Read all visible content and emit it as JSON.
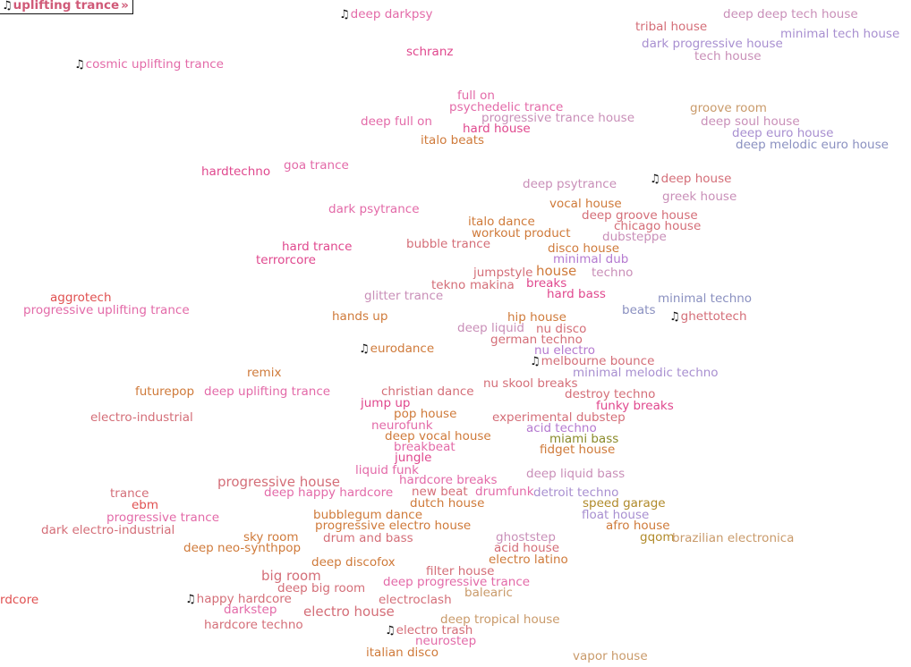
{
  "colors": {
    "pink": "#e36aa8",
    "magenta": "#e0488e",
    "salmon": "#e06a6a",
    "rose": "#d46e78",
    "orange": "#cf7a3a",
    "tan": "#c99a6a",
    "gold": "#b08a2a",
    "olive": "#8a8a2a",
    "mauve": "#c98fb8",
    "lavender": "#a88fd0",
    "slate": "#8a90c0",
    "violet": "#b57ad0",
    "red": "#e05050"
  },
  "genres": [
    {
      "label": "deep darkpsy",
      "note": true
    },
    {
      "label": "cosmic uplifting trance",
      "note": true
    },
    {
      "label": "schranz"
    },
    {
      "label": "tribal house"
    },
    {
      "label": "deep deep tech house"
    },
    {
      "label": "dark progressive house"
    },
    {
      "label": "minimal tech house"
    },
    {
      "label": "tech house"
    },
    {
      "label": "full on"
    },
    {
      "label": "psychedelic trance"
    },
    {
      "label": "progressive trance house"
    },
    {
      "label": "deep full on"
    },
    {
      "label": "hard house"
    },
    {
      "label": "italo beats"
    },
    {
      "label": "groove room"
    },
    {
      "label": "deep soul house"
    },
    {
      "label": "deep euro house"
    },
    {
      "label": "deep melodic euro house"
    },
    {
      "label": "hardtechno"
    },
    {
      "label": "goa trance"
    },
    {
      "label": "deep psytrance"
    },
    {
      "label": "deep house",
      "note": true
    },
    {
      "label": "greek house"
    },
    {
      "label": "dark psytrance"
    },
    {
      "label": "vocal house"
    },
    {
      "label": "deep groove house"
    },
    {
      "label": "italo dance"
    },
    {
      "label": "chicago house"
    },
    {
      "label": "workout product"
    },
    {
      "label": "dubsteppe"
    },
    {
      "label": "hard trance"
    },
    {
      "label": "bubble trance"
    },
    {
      "label": "disco house"
    },
    {
      "label": "terrorcore"
    },
    {
      "label": "minimal dub"
    },
    {
      "label": "jumpstyle"
    },
    {
      "label": "house"
    },
    {
      "label": "techno"
    },
    {
      "label": "aggrotech"
    },
    {
      "label": "tekno"
    },
    {
      "label": "makina"
    },
    {
      "label": "breaks"
    },
    {
      "label": "glitter trance"
    },
    {
      "label": "hard bass"
    },
    {
      "label": "minimal techno"
    },
    {
      "label": "progressive uplifting trance"
    },
    {
      "label": "beats"
    },
    {
      "label": "ghettotech",
      "note": true
    },
    {
      "label": "hands up"
    },
    {
      "label": "hip house"
    },
    {
      "label": "deep liquid"
    },
    {
      "label": "nu disco"
    },
    {
      "label": "german techno"
    },
    {
      "label": "eurodance",
      "note": true
    },
    {
      "label": "nu electro"
    },
    {
      "label": "melbourne bounce",
      "note": true
    },
    {
      "label": "remix"
    },
    {
      "label": "minimal melodic techno"
    },
    {
      "label": "nu skool breaks"
    },
    {
      "label": "futurepop"
    },
    {
      "label": "deep uplifting trance"
    },
    {
      "label": "christian dance"
    },
    {
      "label": "destroy techno"
    },
    {
      "label": "jump up"
    },
    {
      "label": "funky breaks"
    },
    {
      "label": "pop house"
    },
    {
      "label": "electro-industrial"
    },
    {
      "label": "experimental dubstep"
    },
    {
      "label": "neurofunk"
    },
    {
      "label": "acid techno"
    },
    {
      "label": "uplifting trance",
      "note": true,
      "selected": true
    },
    {
      "label": "deep vocal house"
    },
    {
      "label": "miami bass"
    },
    {
      "label": "breakbeat"
    },
    {
      "label": "fidget house"
    },
    {
      "label": "jungle"
    },
    {
      "label": "liquid funk"
    },
    {
      "label": "deep liquid bass"
    },
    {
      "label": "progressive house"
    },
    {
      "label": "hardcore breaks"
    },
    {
      "label": "trance"
    },
    {
      "label": "deep happy hardcore"
    },
    {
      "label": "new beat"
    },
    {
      "label": "drumfunk"
    },
    {
      "label": "detroit techno"
    },
    {
      "label": "ebm"
    },
    {
      "label": "dutch house"
    },
    {
      "label": "speed garage"
    },
    {
      "label": "progressive trance"
    },
    {
      "label": "bubblegum dance"
    },
    {
      "label": "float house"
    },
    {
      "label": "dark electro-industrial"
    },
    {
      "label": "progressive electro house"
    },
    {
      "label": "afro house"
    },
    {
      "label": "sky room"
    },
    {
      "label": "drum and bass"
    },
    {
      "label": "ghoststep"
    },
    {
      "label": "gqom"
    },
    {
      "label": "brazilian electronica"
    },
    {
      "label": "deep neo-synthpop"
    },
    {
      "label": "acid house"
    },
    {
      "label": "electro latino"
    },
    {
      "label": "deep discofox"
    },
    {
      "label": "filter house"
    },
    {
      "label": "big room"
    },
    {
      "label": "deep progressive trance"
    },
    {
      "label": "deep big room"
    },
    {
      "label": "balearic"
    },
    {
      "label": "rdcore"
    },
    {
      "label": "happy hardcore",
      "note": true
    },
    {
      "label": "electroclash"
    },
    {
      "label": "darkstep"
    },
    {
      "label": "electro house"
    },
    {
      "label": "deep tropical house"
    },
    {
      "label": "hardcore techno"
    },
    {
      "label": "electro trash",
      "note": true
    },
    {
      "label": "neurostep"
    },
    {
      "label": "italian disco"
    },
    {
      "label": "vapor house"
    }
  ]
}
